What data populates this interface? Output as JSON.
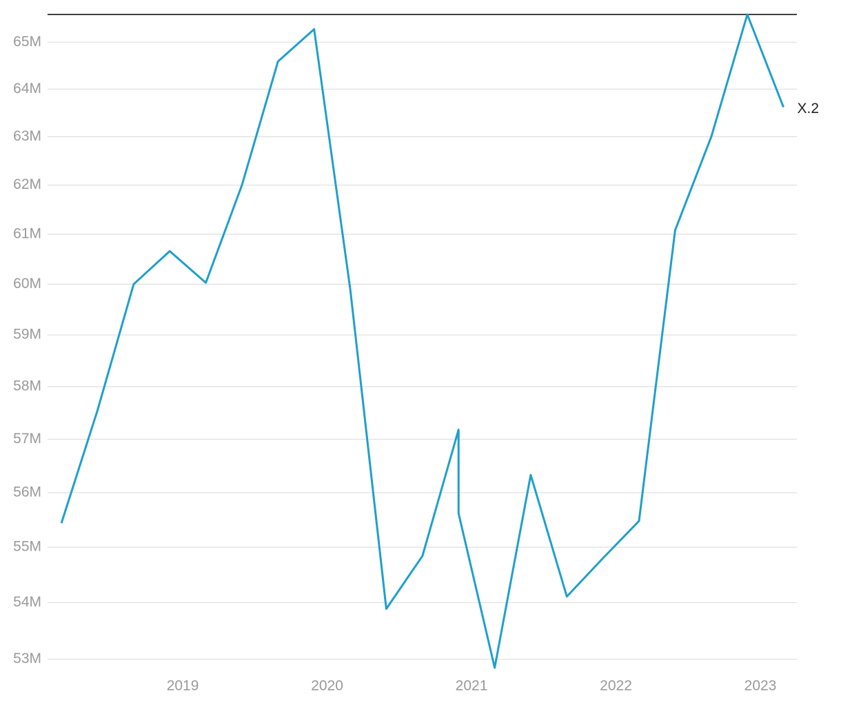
{
  "chart_data": {
    "type": "line",
    "x": [
      2018.16,
      2018.41,
      2018.66,
      2018.91,
      2019.16,
      2019.41,
      2019.66,
      2019.91,
      2020.16,
      2020.41,
      2020.66,
      2020.91,
      2020.91,
      2021.16,
      2021.41,
      2021.66,
      2021.91,
      2022.16,
      2022.41,
      2022.66,
      2022.91,
      2023.16
    ],
    "series": [
      {
        "name": "X.2",
        "color": "#1f9fcc",
        "values": [
          55440000,
          57550000,
          60000000,
          60660000,
          60030000,
          62000000,
          64590000,
          65280000,
          59900000,
          53890000,
          54840000,
          57180000,
          55620000,
          52850000,
          56330000,
          54110000,
          54800000,
          55480000,
          61080000,
          63000000,
          65600000,
          63620000
        ]
      }
    ],
    "xlim": [
      2018.064,
      2023.253
    ],
    "xticks": [
      2019,
      2020,
      2021,
      2022,
      2023
    ],
    "ylim": [
      52800000,
      65600000
    ],
    "yticks": [
      {
        "value": 53000000,
        "label": "53M"
      },
      {
        "value": 54000000,
        "label": "54M"
      },
      {
        "value": 55000000,
        "label": "55M"
      },
      {
        "value": 56000000,
        "label": "56M"
      },
      {
        "value": 57000000,
        "label": "57M"
      },
      {
        "value": 58000000,
        "label": "58M"
      },
      {
        "value": 59000000,
        "label": "59M"
      },
      {
        "value": 60000000,
        "label": "60M"
      },
      {
        "value": 61000000,
        "label": "61M"
      },
      {
        "value": 62000000,
        "label": "62M"
      },
      {
        "value": 63000000,
        "label": "63M"
      },
      {
        "value": 64000000,
        "label": "64M"
      },
      {
        "value": 65000000,
        "label": "65M"
      }
    ],
    "log_scale_y": true,
    "grid": true
  }
}
